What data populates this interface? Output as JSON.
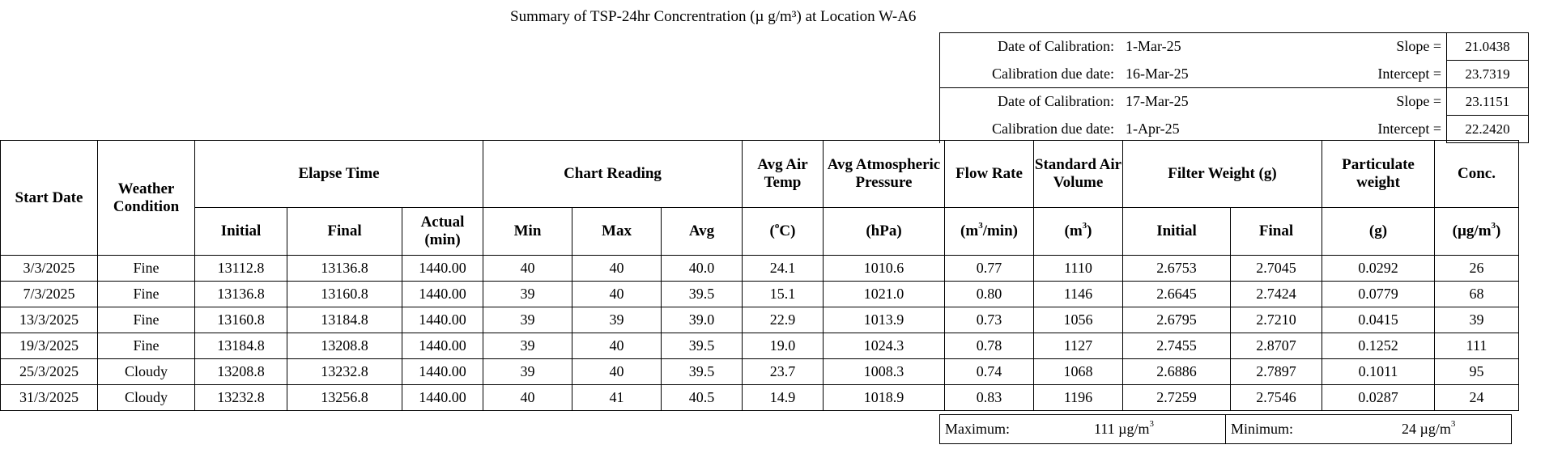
{
  "title": "Summary of TSP-24hr Concrentration (µ g/m³) at Location W-A6",
  "calibration": [
    {
      "date_label": "Date of Calibration:",
      "date": "1-Mar-25",
      "param_label": "Slope =",
      "param_value": "21.0438"
    },
    {
      "date_label": "Calibration due date:",
      "date": "16-Mar-25",
      "param_label": "Intercept =",
      "param_value": "23.7319"
    },
    {
      "date_label": "Date of Calibration:",
      "date": "17-Mar-25",
      "param_label": "Slope =",
      "param_value": "23.1151"
    },
    {
      "date_label": "Calibration due date:",
      "date": "1-Apr-25",
      "param_label": "Intercept =",
      "param_value": "22.2420"
    }
  ],
  "headers": {
    "start_date": "Start Date",
    "weather": "Weather Condition",
    "elapse": "Elapse Time",
    "elapse_initial": "Initial",
    "elapse_final": "Final",
    "elapse_actual": "Actual (min)",
    "chart": "Chart Reading",
    "chart_min": "Min",
    "chart_max": "Max",
    "chart_avg": "Avg",
    "air_temp": "Avg Air Temp",
    "air_temp_unit_pre": "(",
    "air_temp_unit_sup": "o",
    "air_temp_unit_post": "C)",
    "pressure": "Avg Atmospheric Pressure",
    "pressure_unit": "(hPa)",
    "flow": "Flow Rate",
    "flow_unit_pre": "(m",
    "flow_unit_sup": "3",
    "flow_unit_post": "/min)",
    "std_vol": "Standard Air Volume",
    "std_vol_unit_pre": "(m",
    "std_vol_unit_sup": "3",
    "std_vol_unit_post": ")",
    "filter": "Filter Weight (g)",
    "filter_initial": "Initial",
    "filter_final": "Final",
    "particulate": "Particulate weight",
    "particulate_unit": "(g)",
    "conc": "Conc.",
    "conc_unit_pre": "(µg/m",
    "conc_unit_sup": "3",
    "conc_unit_post": ")"
  },
  "rows": [
    [
      "3/3/2025",
      "Fine",
      "13112.8",
      "13136.8",
      "1440.00",
      "40",
      "40",
      "40.0",
      "24.1",
      "1010.6",
      "0.77",
      "1110",
      "2.6753",
      "2.7045",
      "0.0292",
      "26"
    ],
    [
      "7/3/2025",
      "Fine",
      "13136.8",
      "13160.8",
      "1440.00",
      "39",
      "40",
      "39.5",
      "15.1",
      "1021.0",
      "0.80",
      "1146",
      "2.6645",
      "2.7424",
      "0.0779",
      "68"
    ],
    [
      "13/3/2025",
      "Fine",
      "13160.8",
      "13184.8",
      "1440.00",
      "39",
      "39",
      "39.0",
      "22.9",
      "1013.9",
      "0.73",
      "1056",
      "2.6795",
      "2.7210",
      "0.0415",
      "39"
    ],
    [
      "19/3/2025",
      "Fine",
      "13184.8",
      "13208.8",
      "1440.00",
      "39",
      "40",
      "39.5",
      "19.0",
      "1024.3",
      "0.78",
      "1127",
      "2.7455",
      "2.8707",
      "0.1252",
      "111"
    ],
    [
      "25/3/2025",
      "Cloudy",
      "13208.8",
      "13232.8",
      "1440.00",
      "39",
      "40",
      "39.5",
      "23.7",
      "1008.3",
      "0.74",
      "1068",
      "2.6886",
      "2.7897",
      "0.1011",
      "95"
    ],
    [
      "31/3/2025",
      "Cloudy",
      "13232.8",
      "13256.8",
      "1440.00",
      "40",
      "41",
      "40.5",
      "14.9",
      "1018.9",
      "0.83",
      "1196",
      "2.7259",
      "2.7546",
      "0.0287",
      "24"
    ]
  ],
  "summary": {
    "max_label": "Maximum:",
    "max_value": "111",
    "min_label": "Minimum:",
    "min_value": "24",
    "unit_pre": "µg/m",
    "unit_sup": "3"
  }
}
